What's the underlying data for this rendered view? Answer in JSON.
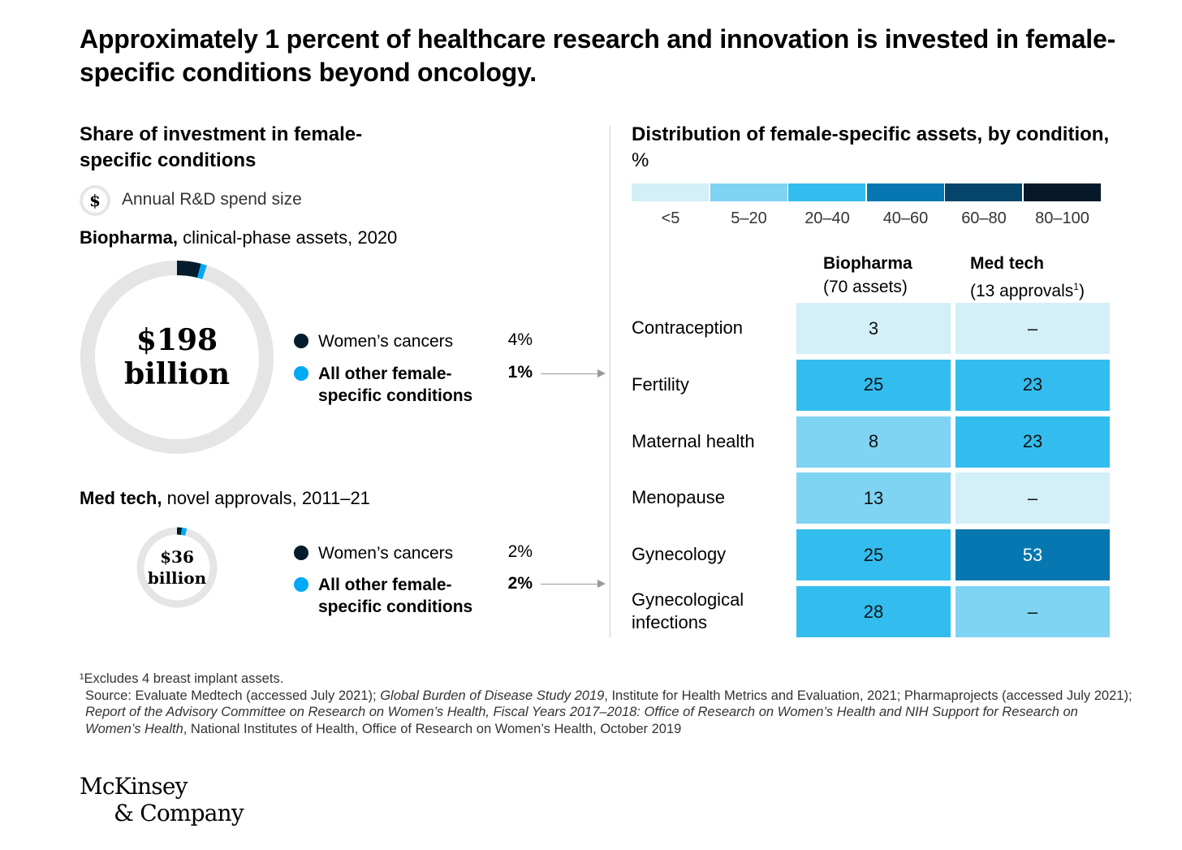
{
  "title": "Approximately 1 percent of healthcare research and innovation is invested in female-specific conditions beyond oncology.",
  "left": {
    "title": "Share of investment in female-specific conditions",
    "spend_icon": "dollar-icon",
    "spend_icon_glyph": "$",
    "spend_label": "Annual R&D spend size",
    "biopharma": {
      "label_bold": "Biopharma,",
      "label_rest": " clinical-phase assets, 2020",
      "center_line1": "$198",
      "center_line2": "billion",
      "legend": [
        {
          "label": "Women’s cancers",
          "value": "4%",
          "color": "#051c2c"
        },
        {
          "label": "All other female-specific conditions",
          "value": "1%",
          "color": "#00a9f4"
        }
      ]
    },
    "medtech": {
      "label_bold": "Med tech,",
      "label_rest": " novel approvals, 2011–21",
      "center_line1": "$36",
      "center_line2": "billion",
      "legend": [
        {
          "label": "Women’s cancers",
          "value": "2%",
          "color": "#051c2c"
        },
        {
          "label": "All other female-specific conditions",
          "value": "2%",
          "color": "#00a9f4"
        }
      ]
    }
  },
  "right": {
    "title": "Distribution of female-specific assets, by condition,",
    "title_unit": " %",
    "scale": [
      {
        "label": "<5",
        "color": "#d3eff8"
      },
      {
        "label": "5–20",
        "color": "#7fd3f3"
      },
      {
        "label": "20–40",
        "color": "#33bdee"
      },
      {
        "label": "40–60",
        "color": "#0677b0"
      },
      {
        "label": "60–80",
        "color": "#05456c"
      },
      {
        "label": "80–100",
        "color": "#061829"
      }
    ],
    "columns": [
      {
        "name": "Biopharma",
        "sub": "(70 assets)"
      },
      {
        "name": "Med tech",
        "sub": "(13 approvals",
        "sup": "1",
        "sub_end": ")"
      }
    ]
  },
  "chart_data": [
    {
      "type": "pie",
      "title": "Biopharma, clinical-phase assets, 2020",
      "total": "$198 billion",
      "slices": [
        {
          "name": "Women’s cancers",
          "value": 4
        },
        {
          "name": "All other female-specific conditions",
          "value": 1
        }
      ]
    },
    {
      "type": "pie",
      "title": "Med tech, novel approvals, 2011–21",
      "total": "$36 billion",
      "slices": [
        {
          "name": "Women’s cancers",
          "value": 2
        },
        {
          "name": "All other female-specific conditions",
          "value": 2
        }
      ]
    },
    {
      "type": "heatmap",
      "title": "Distribution of female-specific assets, by condition, %",
      "columns": [
        "Biopharma",
        "Med tech"
      ],
      "rows": [
        {
          "condition": "Contraception",
          "biopharma": "3",
          "medtech": "–",
          "bio_color": "#d3eff8",
          "med_color": "#d3eff8"
        },
        {
          "condition": "Fertility",
          "biopharma": "25",
          "medtech": "23",
          "bio_color": "#33bdee",
          "med_color": "#33bdee"
        },
        {
          "condition": "Maternal health",
          "biopharma": "8",
          "medtech": "23",
          "bio_color": "#7fd3f3",
          "med_color": "#33bdee"
        },
        {
          "condition": "Menopause",
          "biopharma": "13",
          "medtech": "–",
          "bio_color": "#7fd3f3",
          "med_color": "#d3eff8"
        },
        {
          "condition": "Gynecology",
          "biopharma": "25",
          "medtech": "53",
          "bio_color": "#33bdee",
          "med_color": "#0677b0"
        },
        {
          "condition": "Gynecological infections",
          "biopharma": "28",
          "medtech": "–",
          "bio_color": "#33bdee",
          "med_color": "#7fd3f3"
        }
      ]
    }
  ],
  "footnote": {
    "note": "¹Excludes 4 breast implant assets.",
    "source_parts": [
      {
        "text": "Source: Evaluate Medtech (accessed July 2021); ",
        "italic": false
      },
      {
        "text": "Global Burden of Disease Study 2019",
        "italic": true
      },
      {
        "text": ", Institute for Health Metrics and Evaluation, 2021; Pharmaprojects (accessed July 2021); ",
        "italic": false
      },
      {
        "text": "Report of the Advisory Committee on Research on Women’s Health, Fiscal Years 2017–2018: Office of Research on Women’s Health and NIH Support for Research on Women’s Health",
        "italic": true
      },
      {
        "text": ", National Institutes of Health, Office of Research on Women’s Health, October 2019",
        "italic": false
      }
    ]
  },
  "logo": {
    "line1": "McKinsey",
    "line2": "& Company"
  }
}
